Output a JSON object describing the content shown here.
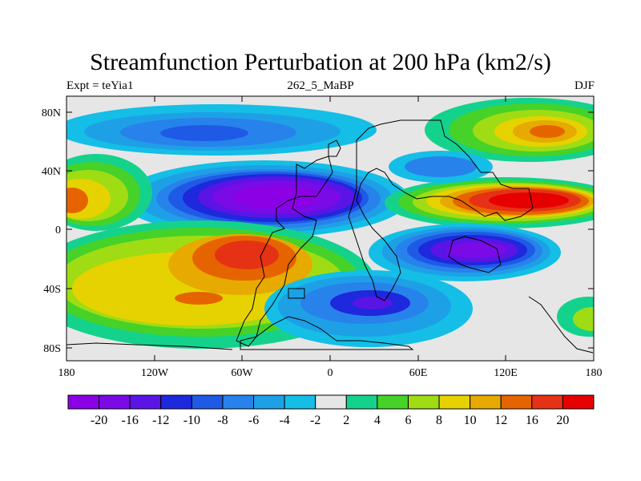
{
  "title": "Streamfunction Perturbation at 200 hPa (km2/s)",
  "subtitle_left": "Expt = teYia1",
  "subtitle_center": "262_5_MaBP",
  "subtitle_right": "DJF",
  "lon_ticks": [
    "180",
    "120W",
    "60W",
    "0",
    "60E",
    "120E",
    "180"
  ],
  "lat_ticks": [
    "80N",
    "40N",
    "0",
    "40S",
    "80S"
  ],
  "colorbar": {
    "labels": [
      "-20",
      "-16",
      "-12",
      "-10",
      "-8",
      "-6",
      "-4",
      "-2",
      "2",
      "4",
      "6",
      "8",
      "10",
      "12",
      "16",
      "20"
    ],
    "colors": [
      "#8c00e6",
      "#7a0ae6",
      "#5a14e6",
      "#1e28dc",
      "#1e5ae6",
      "#2882eb",
      "#1ea0e6",
      "#14bee6",
      "#e6e6e6",
      "#14d28c",
      "#46d228",
      "#a0dc14",
      "#e6d200",
      "#e6aa00",
      "#e66400",
      "#e63214",
      "#e60000"
    ]
  },
  "colors": {
    "background": "#e6e6e6",
    "coastline": "#000000"
  }
}
